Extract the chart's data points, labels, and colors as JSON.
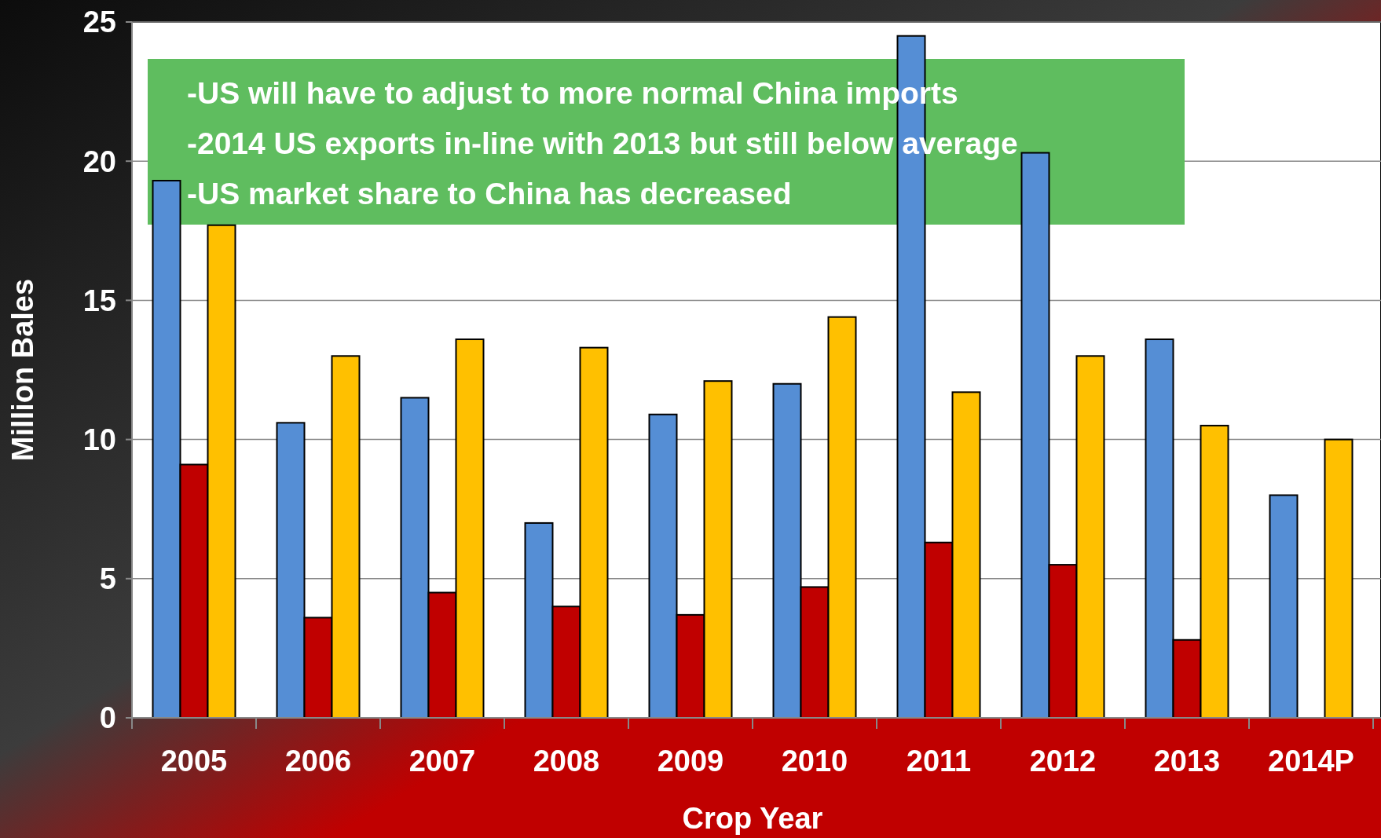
{
  "chart_data": {
    "type": "bar",
    "xlabel": "Crop Year",
    "ylabel": "Million Bales",
    "categories": [
      "2005",
      "2006",
      "2007",
      "2008",
      "2009",
      "2010",
      "2011",
      "2012",
      "2013",
      "2014P"
    ],
    "series": [
      {
        "color": "#558ed5",
        "values": [
          19.3,
          10.6,
          11.5,
          7.0,
          10.9,
          12.0,
          24.5,
          20.3,
          13.6,
          8.0
        ]
      },
      {
        "color": "#c00000",
        "values": [
          9.1,
          3.6,
          4.5,
          4.0,
          3.7,
          4.7,
          6.3,
          5.5,
          2.8,
          null
        ]
      },
      {
        "color": "#ffc000",
        "values": [
          17.7,
          13.0,
          13.6,
          13.3,
          12.1,
          14.4,
          11.7,
          13.0,
          10.5,
          10.0
        ]
      }
    ],
    "ylim": [
      0,
      25
    ],
    "yticks": [
      0,
      5,
      10,
      15,
      20,
      25
    ],
    "grid": "y",
    "annotations": [
      "-US will have to adjust to more normal China imports",
      "-2014 US exports in-line with 2013 but still below average",
      "-US market share to China has decreased"
    ]
  }
}
